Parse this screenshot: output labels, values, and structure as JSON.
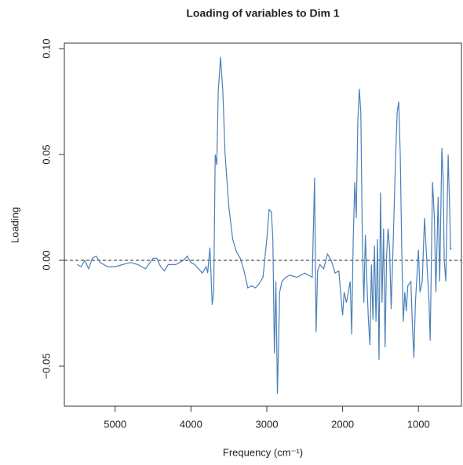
{
  "chart_data": {
    "type": "line",
    "title": "Loading of variables to Dim 1",
    "xlabel": "Frequency (cm⁻¹)",
    "ylabel": "Loading",
    "color": "#4a80b8",
    "hline": 0,
    "xlim": [
      5670,
      433
    ],
    "ylim": [
      -0.0689,
      0.1026
    ],
    "xticks": [
      5000,
      4000,
      3000,
      2000,
      1000
    ],
    "yticks": [
      {
        "value": -0.05,
        "label": "−0.05"
      },
      {
        "value": 0,
        "label": "0.00"
      },
      0.05,
      {
        "value": 0.1,
        "label": "0.10"
      }
    ],
    "x": [
      5500,
      5450,
      5400,
      5350,
      5300,
      5250,
      5200,
      5100,
      5000,
      4900,
      4800,
      4700,
      4600,
      4500,
      4450,
      4400,
      4350,
      4300,
      4200,
      4100,
      4050,
      4000,
      3950,
      3900,
      3850,
      3800,
      3780,
      3750,
      3720,
      3700,
      3680,
      3660,
      3640,
      3610,
      3580,
      3550,
      3500,
      3450,
      3400,
      3350,
      3300,
      3250,
      3200,
      3150,
      3100,
      3050,
      3000,
      2970,
      2940,
      2920,
      2900,
      2880,
      2860,
      2830,
      2800,
      2750,
      2700,
      2600,
      2500,
      2450,
      2400,
      2370,
      2350,
      2330,
      2300,
      2250,
      2200,
      2150,
      2100,
      2050,
      2000,
      1980,
      1950,
      1900,
      1880,
      1860,
      1840,
      1820,
      1800,
      1780,
      1760,
      1740,
      1720,
      1700,
      1680,
      1660,
      1640,
      1620,
      1600,
      1580,
      1560,
      1540,
      1520,
      1500,
      1480,
      1460,
      1440,
      1420,
      1400,
      1380,
      1360,
      1340,
      1300,
      1280,
      1260,
      1240,
      1220,
      1200,
      1180,
      1160,
      1140,
      1100,
      1080,
      1060,
      1040,
      1000,
      980,
      950,
      920,
      890,
      860,
      845,
      814,
      790,
      770,
      740,
      720,
      691,
      675,
      660,
      639,
      608,
      585,
      577,
      567
    ],
    "values": [
      -0.002,
      -0.003,
      0.0,
      -0.004,
      0.001,
      0.002,
      -0.001,
      -0.003,
      -0.003,
      -0.002,
      -0.001,
      -0.002,
      -0.004,
      0.001,
      0.001,
      -0.003,
      -0.005,
      -0.002,
      -0.002,
      0.0,
      0.002,
      -0.001,
      -0.002,
      -0.004,
      -0.006,
      -0.003,
      -0.006,
      0.006,
      -0.021,
      -0.015,
      0.05,
      0.045,
      0.08,
      0.096,
      0.08,
      0.05,
      0.025,
      0.01,
      0.004,
      0.001,
      -0.005,
      -0.013,
      -0.012,
      -0.013,
      -0.011,
      -0.008,
      0.01,
      0.024,
      0.023,
      0.01,
      -0.044,
      -0.01,
      -0.063,
      -0.015,
      -0.01,
      -0.008,
      -0.007,
      -0.008,
      -0.006,
      -0.007,
      -0.008,
      0.039,
      -0.034,
      -0.005,
      -0.002,
      -0.004,
      0.003,
      0.0,
      -0.006,
      -0.005,
      -0.026,
      -0.015,
      -0.02,
      -0.01,
      -0.035,
      0.01,
      0.037,
      0.02,
      0.065,
      0.081,
      0.07,
      0.01,
      -0.02,
      0.012,
      -0.01,
      -0.028,
      -0.04,
      -0.002,
      -0.028,
      0.007,
      -0.029,
      0.01,
      -0.047,
      0.032,
      -0.02,
      0.015,
      -0.041,
      0.002,
      0.015,
      0.005,
      -0.023,
      0.0,
      0.05,
      0.07,
      0.075,
      0.05,
      0.005,
      -0.029,
      -0.015,
      -0.024,
      -0.012,
      -0.01,
      -0.03,
      -0.046,
      -0.02,
      0.005,
      -0.015,
      -0.01,
      0.02,
      0.0,
      -0.02,
      -0.038,
      0.037,
      0.02,
      -0.015,
      0.03,
      -0.01,
      0.053,
      0.04,
      0.0,
      -0.01,
      0.05,
      0.02,
      0.005,
      0.006
    ]
  }
}
